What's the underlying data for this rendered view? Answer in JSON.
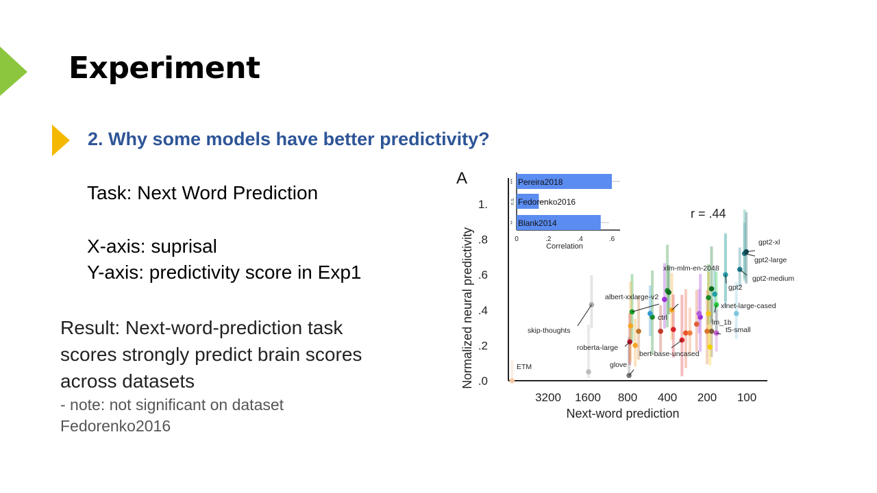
{
  "slide": {
    "title": "Experiment",
    "subheading": "2. Why some models have better predictivity?",
    "task": "Task: Next Word Prediction",
    "x_axis_note": "X-axis: suprisal",
    "y_axis_note": "Y-axis: predictivity score in Exp1",
    "result_lines": [
      "Result: Next-word-prediction task",
      "scores strongly predict brain scores",
      "across datasets"
    ],
    "note_lines": [
      "- note: not significant on dataset",
      "Fedorenko2016"
    ],
    "colors": {
      "green_arrow": "#8cc63f",
      "yellow_arrow": "#f5b800",
      "subheading": "#2e5597"
    }
  },
  "chart_data": [
    {
      "type": "scatter",
      "panel_label": "A",
      "xlabel": "Next-word prediction",
      "ylabel": "Normalized neural predictivity",
      "x_scale": "log, reversed",
      "x_ticks": [
        "3200",
        "1600",
        "800",
        "400",
        "200",
        "100"
      ],
      "y_ticks": [
        "0",
        " .2",
        ".4",
        ".6",
        ".8",
        "1."
      ],
      "y_tick_labels": [
        ".0",
        ".2",
        ".4",
        ".6",
        ".8",
        "1."
      ],
      "ylim": [
        -0.02,
        1.12
      ],
      "annotation": "r = .44",
      "points": [
        {
          "label": "ETM",
          "x": 6000,
          "y": 0.0,
          "color": "#f3c8a6"
        },
        {
          "label": "skip-thoughts",
          "x": 1500,
          "y": 0.43,
          "color": "#aaaaaa"
        },
        {
          "label": "glove",
          "x": 780,
          "y": 0.03,
          "color": "#777777"
        },
        {
          "label": "",
          "x": 1580,
          "y": 0.05,
          "color": "#bbbbbb"
        },
        {
          "label": "roberta-large",
          "x": 770,
          "y": 0.22,
          "color": "#b3132b"
        },
        {
          "label": "albert-xxlarge-v2",
          "x": 740,
          "y": 0.39,
          "color": "#1a9e28"
        },
        {
          "label": "ctrl",
          "x": 520,
          "y": 0.36,
          "color": "#1a8a28"
        },
        {
          "label": "",
          "x": 540,
          "y": 0.38,
          "color": "#3399cc"
        },
        {
          "label": "xlm-mlm-en-2048",
          "x": 370,
          "y": 0.4,
          "color": "#f5a623"
        },
        {
          "label": "",
          "x": 400,
          "y": 0.51,
          "color": "#1a8a28"
        },
        {
          "label": "",
          "x": 390,
          "y": 0.5,
          "color": "#0b6b1e"
        },
        {
          "label": "",
          "x": 420,
          "y": 0.46,
          "color": "#9b30d9"
        },
        {
          "label": "bert-base-uncased",
          "x": 310,
          "y": 0.23,
          "color": "#d8232a"
        },
        {
          "label": "",
          "x": 700,
          "y": 0.2,
          "color": "#f5a623"
        },
        {
          "label": "",
          "x": 660,
          "y": 0.28,
          "color": "#c0752a"
        },
        {
          "label": "",
          "x": 760,
          "y": 0.31,
          "color": "#f5a623"
        },
        {
          "label": "",
          "x": 450,
          "y": 0.28,
          "color": "#c0392b"
        },
        {
          "label": "",
          "x": 360,
          "y": 0.29,
          "color": "#d8232a"
        },
        {
          "label": "",
          "x": 290,
          "y": 0.27,
          "color": "#e8552a"
        },
        {
          "label": "",
          "x": 270,
          "y": 0.27,
          "color": "#f07c3a"
        },
        {
          "label": "",
          "x": 240,
          "y": 0.32,
          "color": "#e0603a"
        },
        {
          "label": "",
          "x": 225,
          "y": 0.36,
          "color": "#9b30d9"
        },
        {
          "label": "",
          "x": 230,
          "y": 0.38,
          "color": "#b25be0"
        },
        {
          "label": "",
          "x": 195,
          "y": 0.47,
          "color": "#1a8a28"
        },
        {
          "label": "",
          "x": 185,
          "y": 0.52,
          "color": "#0b6b1e"
        },
        {
          "label": "",
          "x": 175,
          "y": 0.49,
          "color": "#22a0a0"
        },
        {
          "label": "xlnet-large-cased",
          "x": 170,
          "y": 0.43,
          "color": "#2ecc40"
        },
        {
          "label": "lm_1b",
          "x": 195,
          "y": 0.38,
          "color": "#f5c518"
        },
        {
          "label": "t5-small",
          "x": 170,
          "y": 0.27,
          "color": "#c05fd0"
        },
        {
          "label": "",
          "x": 185,
          "y": 0.28,
          "color": "#7b5b3a"
        },
        {
          "label": "",
          "x": 200,
          "y": 0.28,
          "color": "#d8732a"
        },
        {
          "label": "",
          "x": 190,
          "y": 0.19,
          "color": "#f5d000"
        },
        {
          "label": "",
          "x": 120,
          "y": 0.38,
          "color": "#7fc6e0"
        },
        {
          "label": "gpt2",
          "x": 145,
          "y": 0.6,
          "color": "#2a9aa5"
        },
        {
          "label": "gpt2-medium",
          "x": 113,
          "y": 0.63,
          "color": "#1f7a8c"
        },
        {
          "label": "gpt2-large",
          "x": 104,
          "y": 0.72,
          "color": "#1a6e7a"
        },
        {
          "label": "gpt2-xl",
          "x": 101,
          "y": 0.73,
          "color": "#0f4d5a"
        }
      ]
    },
    {
      "type": "bar",
      "orientation": "horizontal",
      "xlabel": "Correlation",
      "x_ticks": [
        "0",
        ".2",
        ".4",
        ".6"
      ],
      "xlim": [
        0,
        0.65
      ],
      "categories": [
        "Pereira2018",
        "Fedorenko2016",
        "Blank2014"
      ],
      "values": [
        0.6,
        0.14,
        0.53
      ],
      "significance": [
        "***",
        "n.s.",
        "**"
      ],
      "bar_color": "#5b8cf0"
    }
  ]
}
